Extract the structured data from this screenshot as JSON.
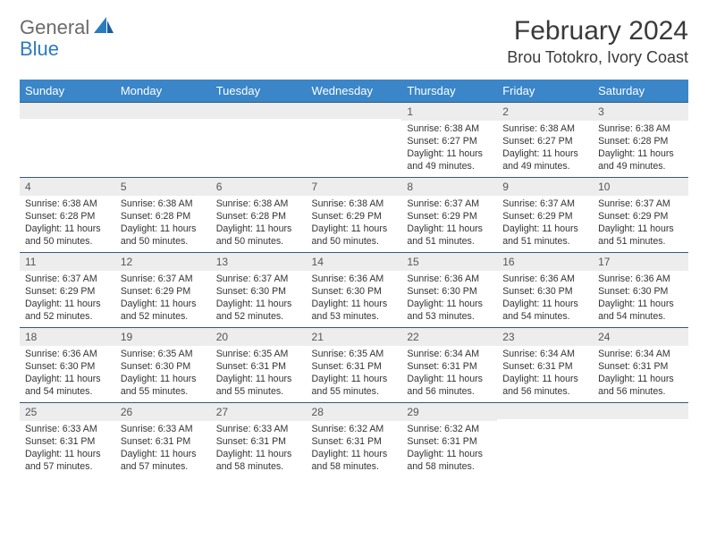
{
  "logo": {
    "part1": "General",
    "part2": "Blue"
  },
  "title": "February 2024",
  "location": "Brou Totokro, Ivory Coast",
  "colors": {
    "header_bg": "#3a86c8",
    "header_text": "#ffffff",
    "daynum_bg": "#ededed",
    "row_border": "#355a7a",
    "logo_gray": "#6b6b6b",
    "logo_blue": "#2b7bbf",
    "body_text": "#333333"
  },
  "typography": {
    "title_fontsize": 30,
    "location_fontsize": 18,
    "header_fontsize": 13,
    "daynum_fontsize": 12,
    "body_fontsize": 10.6
  },
  "weekdays": [
    "Sunday",
    "Monday",
    "Tuesday",
    "Wednesday",
    "Thursday",
    "Friday",
    "Saturday"
  ],
  "weeks": [
    [
      {
        "n": "",
        "sr": "",
        "ss": "",
        "dl": ""
      },
      {
        "n": "",
        "sr": "",
        "ss": "",
        "dl": ""
      },
      {
        "n": "",
        "sr": "",
        "ss": "",
        "dl": ""
      },
      {
        "n": "",
        "sr": "",
        "ss": "",
        "dl": ""
      },
      {
        "n": "1",
        "sr": "Sunrise: 6:38 AM",
        "ss": "Sunset: 6:27 PM",
        "dl": "Daylight: 11 hours and 49 minutes."
      },
      {
        "n": "2",
        "sr": "Sunrise: 6:38 AM",
        "ss": "Sunset: 6:27 PM",
        "dl": "Daylight: 11 hours and 49 minutes."
      },
      {
        "n": "3",
        "sr": "Sunrise: 6:38 AM",
        "ss": "Sunset: 6:28 PM",
        "dl": "Daylight: 11 hours and 49 minutes."
      }
    ],
    [
      {
        "n": "4",
        "sr": "Sunrise: 6:38 AM",
        "ss": "Sunset: 6:28 PM",
        "dl": "Daylight: 11 hours and 50 minutes."
      },
      {
        "n": "5",
        "sr": "Sunrise: 6:38 AM",
        "ss": "Sunset: 6:28 PM",
        "dl": "Daylight: 11 hours and 50 minutes."
      },
      {
        "n": "6",
        "sr": "Sunrise: 6:38 AM",
        "ss": "Sunset: 6:28 PM",
        "dl": "Daylight: 11 hours and 50 minutes."
      },
      {
        "n": "7",
        "sr": "Sunrise: 6:38 AM",
        "ss": "Sunset: 6:29 PM",
        "dl": "Daylight: 11 hours and 50 minutes."
      },
      {
        "n": "8",
        "sr": "Sunrise: 6:37 AM",
        "ss": "Sunset: 6:29 PM",
        "dl": "Daylight: 11 hours and 51 minutes."
      },
      {
        "n": "9",
        "sr": "Sunrise: 6:37 AM",
        "ss": "Sunset: 6:29 PM",
        "dl": "Daylight: 11 hours and 51 minutes."
      },
      {
        "n": "10",
        "sr": "Sunrise: 6:37 AM",
        "ss": "Sunset: 6:29 PM",
        "dl": "Daylight: 11 hours and 51 minutes."
      }
    ],
    [
      {
        "n": "11",
        "sr": "Sunrise: 6:37 AM",
        "ss": "Sunset: 6:29 PM",
        "dl": "Daylight: 11 hours and 52 minutes."
      },
      {
        "n": "12",
        "sr": "Sunrise: 6:37 AM",
        "ss": "Sunset: 6:29 PM",
        "dl": "Daylight: 11 hours and 52 minutes."
      },
      {
        "n": "13",
        "sr": "Sunrise: 6:37 AM",
        "ss": "Sunset: 6:30 PM",
        "dl": "Daylight: 11 hours and 52 minutes."
      },
      {
        "n": "14",
        "sr": "Sunrise: 6:36 AM",
        "ss": "Sunset: 6:30 PM",
        "dl": "Daylight: 11 hours and 53 minutes."
      },
      {
        "n": "15",
        "sr": "Sunrise: 6:36 AM",
        "ss": "Sunset: 6:30 PM",
        "dl": "Daylight: 11 hours and 53 minutes."
      },
      {
        "n": "16",
        "sr": "Sunrise: 6:36 AM",
        "ss": "Sunset: 6:30 PM",
        "dl": "Daylight: 11 hours and 54 minutes."
      },
      {
        "n": "17",
        "sr": "Sunrise: 6:36 AM",
        "ss": "Sunset: 6:30 PM",
        "dl": "Daylight: 11 hours and 54 minutes."
      }
    ],
    [
      {
        "n": "18",
        "sr": "Sunrise: 6:36 AM",
        "ss": "Sunset: 6:30 PM",
        "dl": "Daylight: 11 hours and 54 minutes."
      },
      {
        "n": "19",
        "sr": "Sunrise: 6:35 AM",
        "ss": "Sunset: 6:30 PM",
        "dl": "Daylight: 11 hours and 55 minutes."
      },
      {
        "n": "20",
        "sr": "Sunrise: 6:35 AM",
        "ss": "Sunset: 6:31 PM",
        "dl": "Daylight: 11 hours and 55 minutes."
      },
      {
        "n": "21",
        "sr": "Sunrise: 6:35 AM",
        "ss": "Sunset: 6:31 PM",
        "dl": "Daylight: 11 hours and 55 minutes."
      },
      {
        "n": "22",
        "sr": "Sunrise: 6:34 AM",
        "ss": "Sunset: 6:31 PM",
        "dl": "Daylight: 11 hours and 56 minutes."
      },
      {
        "n": "23",
        "sr": "Sunrise: 6:34 AM",
        "ss": "Sunset: 6:31 PM",
        "dl": "Daylight: 11 hours and 56 minutes."
      },
      {
        "n": "24",
        "sr": "Sunrise: 6:34 AM",
        "ss": "Sunset: 6:31 PM",
        "dl": "Daylight: 11 hours and 56 minutes."
      }
    ],
    [
      {
        "n": "25",
        "sr": "Sunrise: 6:33 AM",
        "ss": "Sunset: 6:31 PM",
        "dl": "Daylight: 11 hours and 57 minutes."
      },
      {
        "n": "26",
        "sr": "Sunrise: 6:33 AM",
        "ss": "Sunset: 6:31 PM",
        "dl": "Daylight: 11 hours and 57 minutes."
      },
      {
        "n": "27",
        "sr": "Sunrise: 6:33 AM",
        "ss": "Sunset: 6:31 PM",
        "dl": "Daylight: 11 hours and 58 minutes."
      },
      {
        "n": "28",
        "sr": "Sunrise: 6:32 AM",
        "ss": "Sunset: 6:31 PM",
        "dl": "Daylight: 11 hours and 58 minutes."
      },
      {
        "n": "29",
        "sr": "Sunrise: 6:32 AM",
        "ss": "Sunset: 6:31 PM",
        "dl": "Daylight: 11 hours and 58 minutes."
      },
      {
        "n": "",
        "sr": "",
        "ss": "",
        "dl": ""
      },
      {
        "n": "",
        "sr": "",
        "ss": "",
        "dl": ""
      }
    ]
  ]
}
